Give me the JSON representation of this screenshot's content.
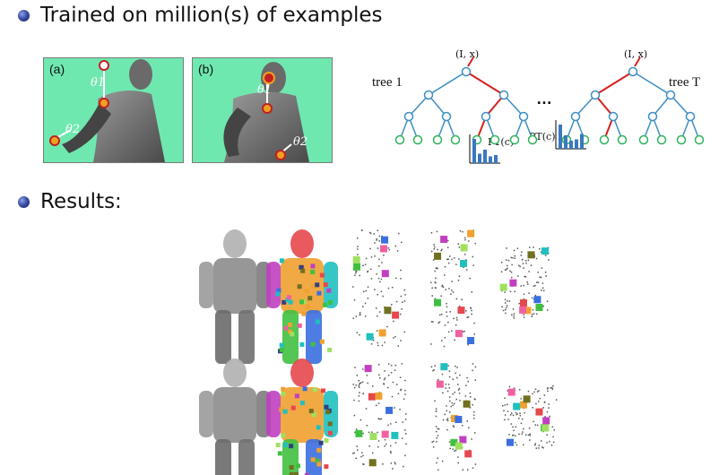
{
  "bullets": [
    {
      "text": "Trained on million(s) of examples"
    },
    {
      "text": "Results:"
    }
  ],
  "panels": {
    "a": {
      "label": "(a)",
      "theta1": "θ1",
      "theta2": "θ2"
    },
    "b": {
      "label": "(b)",
      "theta1": "θ1",
      "theta2": "θ2"
    }
  },
  "forest": {
    "tree1_label": "tree 1",
    "treeT_label": "tree T",
    "input1": "(I, x)",
    "inputT": "(I, x)",
    "ellipsis": "…",
    "p1": "P1(c)",
    "pT": "PT(c)",
    "hist1_values": [
      0.9,
      0.35,
      0.5,
      0.25,
      0.3
    ],
    "histT_values": [
      0.9,
      0.5,
      0.3,
      0.35,
      0.55
    ],
    "colors": {
      "node": "#3c8fc4",
      "leaf": "#2fb35a",
      "path": "#d62020",
      "bar": "#3a78c0"
    }
  },
  "results": {
    "colors": [
      "#e5484d",
      "#f0a030",
      "#40c040",
      "#3a6fe0",
      "#c040c0",
      "#20c0c0",
      "#f060a0",
      "#707020",
      "#a0e060",
      "#304080"
    ]
  }
}
